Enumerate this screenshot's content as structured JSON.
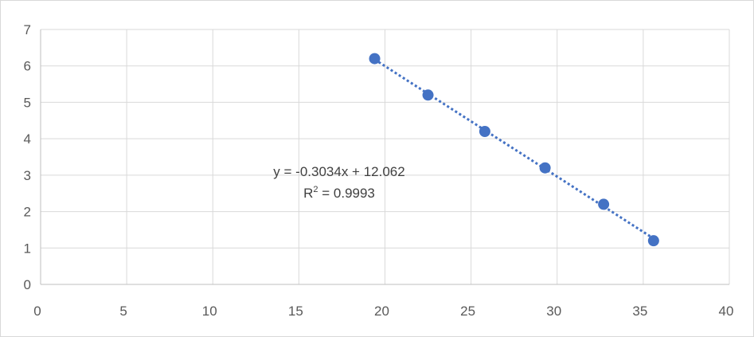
{
  "chart_data": {
    "type": "scatter",
    "title": "",
    "xlabel": "",
    "ylabel": "",
    "xlim": [
      0,
      40
    ],
    "ylim": [
      0,
      7
    ],
    "x_ticks": [
      0,
      5,
      10,
      15,
      20,
      25,
      30,
      35,
      40
    ],
    "y_ticks": [
      0,
      1,
      2,
      3,
      4,
      5,
      6,
      7
    ],
    "grid": true,
    "series": [
      {
        "x": [
          19.4,
          22.5,
          25.8,
          29.3,
          32.7,
          35.6
        ],
        "y": [
          6.2,
          5.2,
          4.2,
          3.2,
          2.2,
          1.2
        ],
        "color": "#4472c4"
      }
    ],
    "trendline": {
      "type": "linear",
      "slope": -0.3034,
      "intercept": 12.062,
      "style": "dotted",
      "color": "#4472c4",
      "equation_text": "y = -0.3034x + 12.062",
      "r2_prefix": "R",
      "r2_exponent": "2",
      "r2_suffix": " = 0.9993"
    },
    "colors": {
      "grid": "#d9d9d9",
      "axis": "#bfbfbf",
      "point": "#4472c4"
    }
  }
}
